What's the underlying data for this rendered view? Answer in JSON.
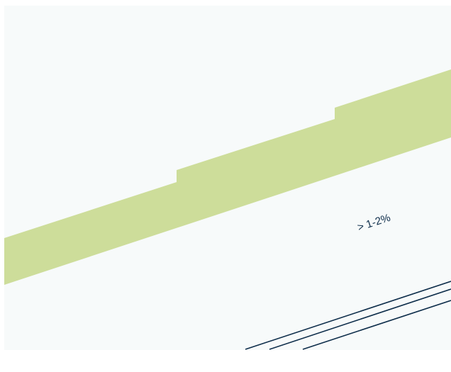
{
  "diagram": {
    "slope_label": "> 1-2%",
    "colors": {
      "panel_background": "#f7fafa",
      "page_background": "#ffffff",
      "green_band": "#cddd9a",
      "line_color": "#0d2d4a",
      "label_color": "#0d2d4a"
    }
  }
}
